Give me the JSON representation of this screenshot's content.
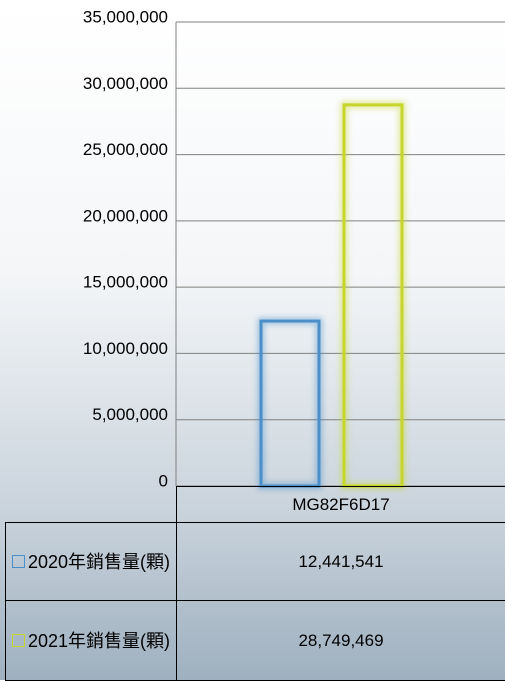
{
  "chart_data": {
    "type": "bar",
    "categories": [
      "MG82F6D17"
    ],
    "series": [
      {
        "name": "2020年銷售量(顆)",
        "color": "#4a8fc9",
        "values": [
          12441541
        ],
        "value_labels": [
          "12,441,541"
        ]
      },
      {
        "name": "2021年銷售量(顆)",
        "color": "#c6d62a",
        "values": [
          28749469
        ],
        "value_labels": [
          "28,749,469"
        ]
      }
    ],
    "ylim": [
      0,
      35000000
    ],
    "yticks": [
      0,
      {
        "value": 5000000,
        "label": "5,000,000"
      },
      {
        "value": 10000000,
        "label": "10,000,000"
      },
      {
        "value": 15000000,
        "label": "15,000,000"
      },
      {
        "value": 20000000,
        "label": "20,000,000"
      },
      {
        "value": 25000000,
        "label": "25,000,000"
      },
      {
        "value": 30000000,
        "label": "30,000,000"
      },
      {
        "value": 35000000,
        "label": "35,000,000"
      }
    ],
    "grid": true,
    "data_table": true
  }
}
